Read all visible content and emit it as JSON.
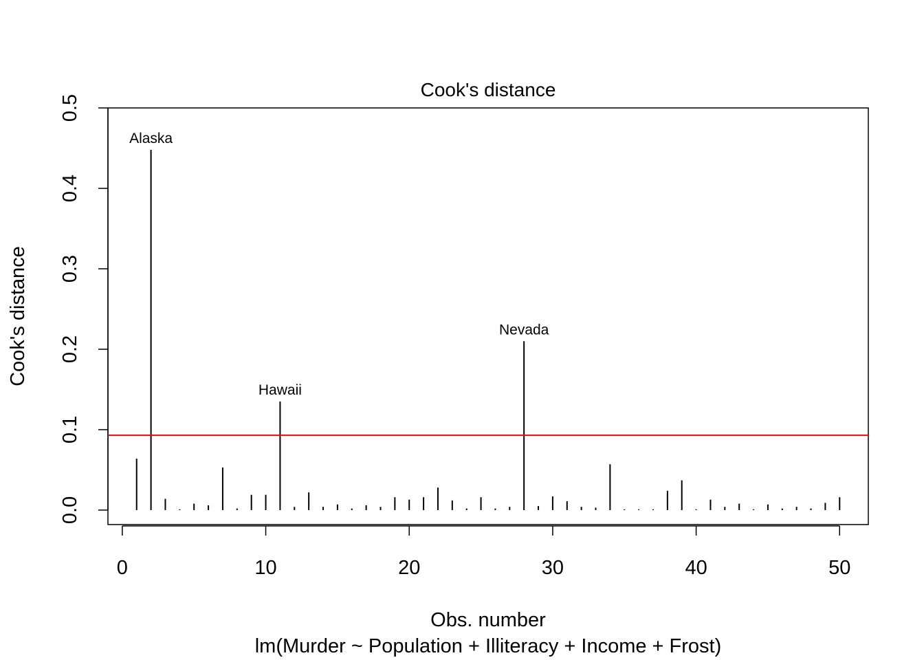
{
  "chart_data": {
    "type": "bar",
    "title": "Cook's distance",
    "xlabel": "Obs. number",
    "xlabel_sub": "lm(Murder ~ Population + Illiteracy + Income + Frost)",
    "ylabel": "Cook's distance",
    "xlim": [
      -1,
      52
    ],
    "ylim": [
      -0.018,
      0.5
    ],
    "x_ticks": [
      0,
      10,
      20,
      30,
      40,
      50
    ],
    "x_tick_labels": [
      "0",
      "10",
      "20",
      "30",
      "40",
      "50"
    ],
    "y_ticks": [
      0.0,
      0.1,
      0.2,
      0.3,
      0.4,
      0.5
    ],
    "y_tick_labels": [
      "0.0",
      "0.1",
      "0.2",
      "0.3",
      "0.4",
      "0.5"
    ],
    "grid": false,
    "legend": "none",
    "x": [
      1,
      2,
      3,
      4,
      5,
      6,
      7,
      8,
      9,
      10,
      11,
      12,
      13,
      14,
      15,
      16,
      17,
      18,
      19,
      20,
      21,
      22,
      23,
      24,
      25,
      26,
      27,
      28,
      29,
      30,
      31,
      32,
      33,
      34,
      35,
      36,
      37,
      38,
      39,
      40,
      41,
      42,
      43,
      44,
      45,
      46,
      47,
      48,
      49,
      50
    ],
    "values": [
      0.064,
      0.448,
      0.014,
      0.001,
      0.008,
      0.006,
      0.053,
      0.002,
      0.019,
      0.019,
      0.135,
      0.004,
      0.022,
      0.004,
      0.007,
      0.002,
      0.006,
      0.004,
      0.016,
      0.013,
      0.016,
      0.028,
      0.012,
      0.002,
      0.016,
      0.002,
      0.004,
      0.21,
      0.005,
      0.017,
      0.011,
      0.004,
      0.003,
      0.057,
      0.001,
      0.001,
      0.001,
      0.024,
      0.037,
      0.001,
      0.013,
      0.004,
      0.008,
      0.001,
      0.007,
      0.002,
      0.004,
      0.002,
      0.009,
      0.016
    ],
    "labeled_points": [
      {
        "x": 2,
        "label": "Alaska"
      },
      {
        "x": 11,
        "label": "Hawaii"
      },
      {
        "x": 28,
        "label": "Nevada"
      }
    ],
    "reference_line": {
      "y": 0.093,
      "color": "#ff0000"
    },
    "bar_color": "#000000"
  }
}
